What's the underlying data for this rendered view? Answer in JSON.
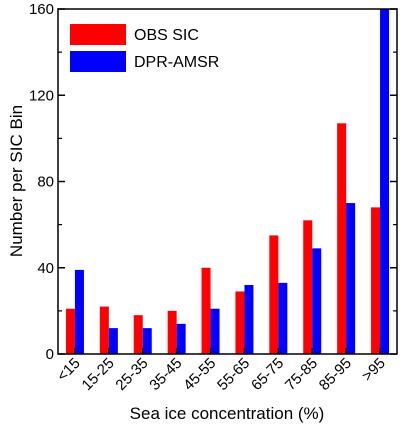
{
  "chart_data": {
    "type": "bar",
    "categories": [
      "<15",
      "15-25",
      "25-35",
      "35-45",
      "45-55",
      "55-65",
      "65-75",
      "75-85",
      "85-95",
      ">95"
    ],
    "series": [
      {
        "name": "OBS SIC",
        "color": "#ff0000",
        "values": [
          21,
          22,
          18,
          20,
          40,
          29,
          55,
          62,
          107,
          68
        ]
      },
      {
        "name": "DPR-AMSR",
        "color": "#0000ff",
        "values": [
          39,
          12,
          12,
          14,
          21,
          32,
          33,
          49,
          70,
          160
        ]
      }
    ],
    "xlabel": "Sea ice concentration (%)",
    "ylabel": "Number per SIC Bin",
    "ylim": [
      0,
      160
    ],
    "yticks": [
      0,
      40,
      80,
      120,
      160
    ],
    "legend_position": "top-left",
    "grid": false
  }
}
